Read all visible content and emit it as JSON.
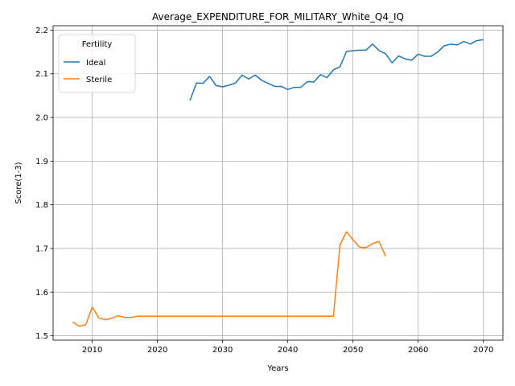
{
  "chart_data": {
    "type": "line",
    "title": "Average_EXPENDITURE_FOR_MILITARY_White_Q4_IQ",
    "xlabel": "Years",
    "ylabel": "Score(1-3)",
    "xlim": [
      2004,
      2073
    ],
    "ylim": [
      1.49,
      2.21
    ],
    "x_ticks": [
      2010,
      2020,
      2030,
      2040,
      2050,
      2060,
      2070
    ],
    "y_ticks": [
      1.5,
      1.6,
      1.7,
      1.8,
      1.9,
      2.0,
      2.1,
      2.2
    ],
    "grid": true,
    "legend": {
      "title": "Fertility",
      "placement": "top-left"
    },
    "series": [
      {
        "name": "Ideal",
        "color": "#1f77b4",
        "x": [
          2025,
          2026,
          2027,
          2028,
          2029,
          2030,
          2031,
          2032,
          2033,
          2034,
          2035,
          2036,
          2037,
          2038,
          2039,
          2040,
          2041,
          2042,
          2043,
          2044,
          2045,
          2046,
          2047,
          2048,
          2049,
          2050,
          2051,
          2052,
          2053,
          2054,
          2055,
          2056,
          2057,
          2058,
          2059,
          2060,
          2061,
          2062,
          2063,
          2064,
          2065,
          2066,
          2067,
          2068,
          2069,
          2070
        ],
        "y": [
          2.039,
          2.079,
          2.078,
          2.094,
          2.073,
          2.07,
          2.074,
          2.079,
          2.097,
          2.088,
          2.097,
          2.085,
          2.078,
          2.071,
          2.071,
          2.064,
          2.069,
          2.069,
          2.082,
          2.081,
          2.098,
          2.091,
          2.109,
          2.116,
          2.151,
          2.153,
          2.154,
          2.154,
          2.168,
          2.153,
          2.146,
          2.125,
          2.141,
          2.134,
          2.131,
          2.145,
          2.14,
          2.14,
          2.15,
          2.164,
          2.168,
          2.166,
          2.174,
          2.168,
          2.176,
          2.178
        ]
      },
      {
        "name": "Sterile",
        "color": "#ff7f0e",
        "x": [
          2007,
          2008,
          2009,
          2010,
          2011,
          2012,
          2013,
          2014,
          2015,
          2016,
          2017,
          2018,
          2019,
          2020,
          2021,
          2022,
          2023,
          2024,
          2025,
          2026,
          2027,
          2028,
          2029,
          2030,
          2031,
          2032,
          2033,
          2034,
          2035,
          2036,
          2037,
          2038,
          2039,
          2040,
          2041,
          2042,
          2043,
          2044,
          2045,
          2046,
          2047,
          2048,
          2049,
          2050,
          2051,
          2052,
          2053,
          2054,
          2055
        ],
        "y": [
          1.532,
          1.522,
          1.525,
          1.566,
          1.541,
          1.537,
          1.54,
          1.546,
          1.542,
          1.542,
          1.545,
          1.545,
          1.545,
          1.545,
          1.545,
          1.545,
          1.545,
          1.545,
          1.545,
          1.545,
          1.545,
          1.545,
          1.545,
          1.545,
          1.545,
          1.545,
          1.545,
          1.545,
          1.545,
          1.545,
          1.545,
          1.545,
          1.545,
          1.545,
          1.545,
          1.545,
          1.545,
          1.545,
          1.545,
          1.545,
          1.545,
          1.708,
          1.738,
          1.72,
          1.703,
          1.702,
          1.711,
          1.716,
          1.682
        ]
      }
    ]
  }
}
